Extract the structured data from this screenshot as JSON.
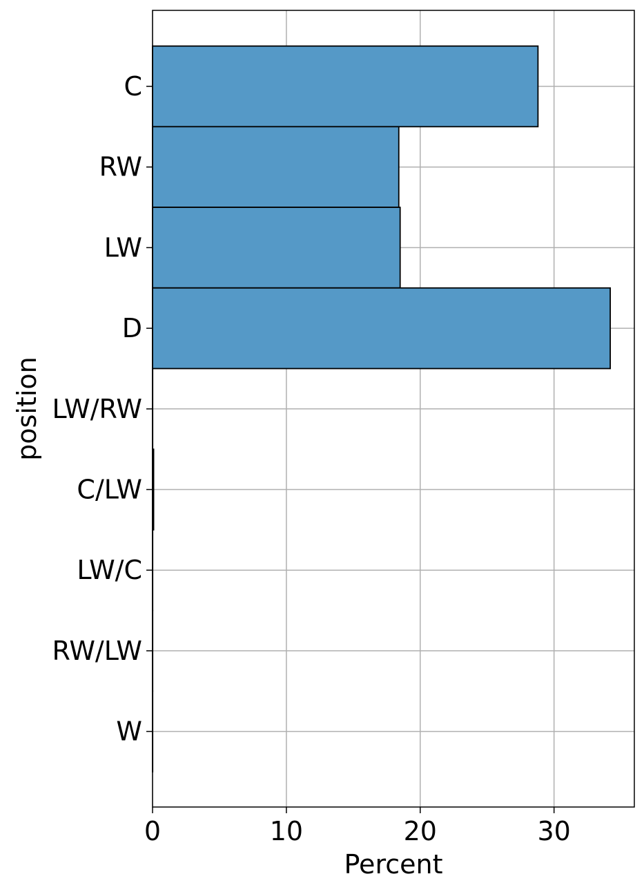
{
  "chart_data": {
    "type": "bar",
    "orientation": "horizontal",
    "title": "",
    "xlabel": "Percent",
    "ylabel": "position",
    "categories": [
      "C",
      "RW",
      "LW",
      "D",
      "LW/RW",
      "C/LW",
      "LW/C",
      "RW/LW",
      "W"
    ],
    "values": [
      28.8,
      18.4,
      18.5,
      34.2,
      0.01,
      0.08,
      0.01,
      0.01,
      0.01
    ],
    "xlim": [
      0,
      36
    ],
    "xticks": [
      0,
      10,
      20,
      30
    ],
    "grid": true,
    "legend": "none",
    "colors": {
      "bar_fill": "#5599c7",
      "bar_edge": "#000000",
      "grid": "#b0b0b0",
      "axis": "#000000"
    }
  }
}
